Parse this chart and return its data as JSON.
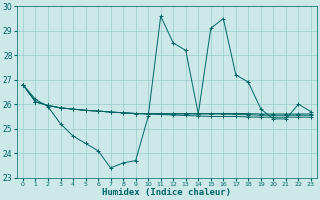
{
  "title": "",
  "xlabel": "Humidex (Indice chaleur)",
  "ylabel": "",
  "bg_color": "#cce8e8",
  "line_color": "#006666",
  "grid_color": "#99cccc",
  "series": [
    [
      26.8,
      26.2,
      25.9,
      25.2,
      24.7,
      24.4,
      24.1,
      23.4,
      23.6,
      23.7,
      25.5,
      29.6,
      28.5,
      28.2,
      25.6,
      29.1,
      29.5,
      27.2,
      26.9,
      25.8,
      25.4,
      25.4,
      26.0,
      25.7
    ],
    [
      26.8,
      26.1,
      25.95,
      25.85,
      25.8,
      25.75,
      25.72,
      25.68,
      25.65,
      25.62,
      25.6,
      25.58,
      25.56,
      25.54,
      25.52,
      25.5,
      25.5,
      25.5,
      25.48,
      25.47,
      25.47,
      25.47,
      25.47,
      25.47
    ],
    [
      26.8,
      26.1,
      25.95,
      25.85,
      25.8,
      25.75,
      25.72,
      25.68,
      25.65,
      25.62,
      25.6,
      25.6,
      25.6,
      25.6,
      25.6,
      25.6,
      25.6,
      25.58,
      25.57,
      25.55,
      25.55,
      25.55,
      25.55,
      25.55
    ],
    [
      26.8,
      26.1,
      25.95,
      25.85,
      25.8,
      25.75,
      25.72,
      25.68,
      25.65,
      25.62,
      25.62,
      25.62,
      25.62,
      25.62,
      25.62,
      25.62,
      25.62,
      25.62,
      25.62,
      25.6,
      25.6,
      25.6,
      25.6,
      25.6
    ]
  ],
  "xlim": [
    -0.5,
    23.5
  ],
  "ylim": [
    23,
    30
  ],
  "yticks": [
    23,
    24,
    25,
    26,
    27,
    28,
    29,
    30
  ],
  "xticks": [
    0,
    1,
    2,
    3,
    4,
    5,
    6,
    7,
    8,
    9,
    10,
    11,
    12,
    13,
    14,
    15,
    16,
    17,
    18,
    19,
    20,
    21,
    22,
    23
  ]
}
